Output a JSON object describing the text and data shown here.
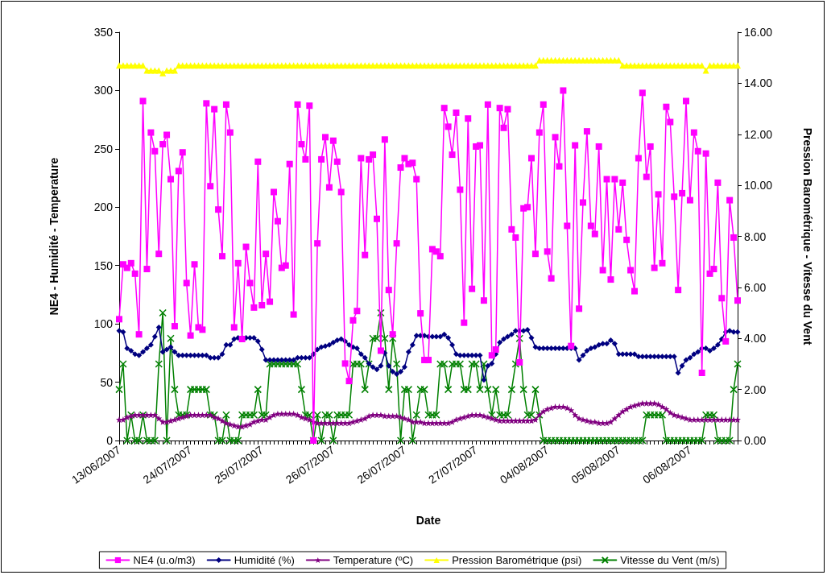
{
  "chart_data": {
    "type": "line",
    "xlabel": "Date",
    "ylabel": "NE4 - Humidité - Temperature",
    "y2label": "Pression Barométrique - Vitesse du Vent",
    "categories": [
      "13/06/2007",
      null,
      null,
      null,
      null,
      null,
      null,
      null,
      null,
      null,
      null,
      null,
      null,
      null,
      null,
      null,
      null,
      null,
      "24/07/2007",
      null,
      null,
      null,
      null,
      null,
      null,
      null,
      null,
      null,
      null,
      null,
      null,
      null,
      null,
      null,
      null,
      null,
      "25/07/2007",
      null,
      null,
      null,
      null,
      null,
      null,
      null,
      null,
      null,
      null,
      null,
      null,
      null,
      null,
      null,
      null,
      null,
      "26/07/2007",
      null,
      null,
      null,
      null,
      null,
      null,
      null,
      null,
      null,
      null,
      null,
      null,
      null,
      null,
      null,
      null,
      null,
      "26/07/2007",
      null,
      null,
      null,
      null,
      null,
      null,
      null,
      null,
      null,
      null,
      null,
      null,
      null,
      null,
      null,
      null,
      null,
      "27/07/2007",
      null,
      null,
      null,
      null,
      null,
      null,
      null,
      null,
      null,
      null,
      null,
      null,
      null,
      null,
      null,
      null,
      null,
      "04/08/2007",
      null,
      null,
      null,
      null,
      null,
      null,
      null,
      null,
      null,
      null,
      null,
      null,
      null,
      null,
      null,
      null,
      null,
      "05/08/2007",
      null,
      null,
      null,
      null,
      null,
      null,
      null,
      null,
      null,
      null,
      null,
      null,
      null,
      null,
      null,
      null,
      null,
      "06/08/2007",
      null,
      null,
      null,
      null,
      null,
      null,
      null,
      null,
      null,
      null,
      null,
      null
    ],
    "ylim": [
      0,
      350
    ],
    "yticks": [
      0,
      50,
      100,
      150,
      200,
      250,
      300,
      350
    ],
    "y2lim": [
      0,
      16
    ],
    "y2ticks": [
      {
        "value": 0,
        "label": "0.00"
      },
      {
        "value": 2,
        "label": "2.00"
      },
      {
        "value": 4,
        "label": "4.00"
      },
      {
        "value": 6,
        "label": "6.00"
      },
      {
        "value": 8,
        "label": "8.00"
      },
      {
        "value": 10,
        "label": "10.00"
      },
      {
        "value": 12,
        "label": "12.00"
      },
      {
        "value": 14,
        "label": "14.00"
      },
      {
        "value": 16,
        "label": "16.00"
      }
    ],
    "grid": false,
    "legend": "bottom",
    "series": [
      {
        "name": "NE4 (u.o/m3)",
        "color": "#ff00ff",
        "marker": "square",
        "values": [
          104,
          151,
          148,
          152,
          143,
          91,
          291,
          147,
          264,
          248,
          160,
          254,
          262,
          224,
          98,
          231,
          247,
          135,
          90,
          151,
          97,
          95,
          289,
          218,
          284,
          198,
          158,
          288,
          264,
          97,
          152,
          87,
          166,
          135,
          114,
          239,
          116,
          160,
          119,
          213,
          188,
          148,
          150,
          237,
          108,
          288,
          254,
          241,
          287,
          0,
          169,
          241,
          260,
          217,
          257,
          239,
          213,
          66,
          51,
          103,
          111,
          242,
          159,
          241,
          245,
          190,
          77,
          258,
          129,
          91,
          169,
          234,
          242,
          237,
          238,
          224,
          109,
          69,
          69,
          164,
          162,
          158,
          285,
          269,
          245,
          281,
          215,
          101,
          276,
          130,
          252,
          253,
          120,
          288,
          73,
          78,
          285,
          268,
          284,
          181,
          174,
          67,
          199,
          200,
          242,
          160,
          264,
          288,
          162,
          139,
          260,
          235,
          300,
          184,
          81,
          253,
          113,
          204,
          265,
          184,
          177,
          252,
          146,
          224,
          138,
          224,
          181,
          221,
          172,
          146,
          128,
          242,
          298,
          226,
          252,
          148,
          211,
          152,
          286,
          273,
          209,
          129,
          212,
          291,
          206,
          264,
          248,
          58,
          246,
          143,
          147,
          221,
          122,
          85,
          206,
          174,
          120
        ]
      },
      {
        "name": "Humidité (%)",
        "color": "#000080",
        "marker": "diamond",
        "values": [
          94,
          93,
          79,
          77,
          74,
          73,
          76,
          79,
          82,
          89,
          97,
          76,
          78,
          80,
          76,
          73,
          73,
          73,
          73,
          73,
          73,
          73,
          73,
          71,
          71,
          71,
          74,
          82,
          82,
          87,
          88,
          88,
          88,
          88,
          88,
          85,
          78,
          69,
          69,
          69,
          69,
          69,
          69,
          69,
          69,
          71,
          71,
          71,
          71,
          74,
          78,
          80,
          81,
          82,
          84,
          86,
          87,
          85,
          82,
          80,
          79,
          74,
          71,
          66,
          63,
          61,
          64,
          75,
          64,
          59,
          57,
          59,
          63,
          76,
          82,
          90,
          90,
          90,
          89,
          89,
          89,
          89,
          91,
          88,
          82,
          74,
          73,
          73,
          73,
          73,
          73,
          73,
          52,
          64,
          66,
          74,
          84,
          87,
          89,
          91,
          94,
          94,
          94,
          95,
          88,
          80,
          79,
          79,
          79,
          79,
          79,
          79,
          79,
          79,
          79,
          79,
          69,
          73,
          77,
          79,
          80,
          82,
          83,
          83,
          86,
          83,
          74,
          74,
          74,
          74,
          74,
          72,
          72,
          72,
          72,
          72,
          72,
          72,
          72,
          72,
          72,
          58,
          64,
          69,
          71,
          74,
          76,
          79,
          79,
          77,
          79,
          82,
          87,
          93,
          94,
          93,
          93
        ]
      },
      {
        "name": "Temperature (ºC)",
        "color": "#800080",
        "marker": "star",
        "values": [
          18,
          18,
          20,
          21,
          22,
          22,
          22,
          22,
          22,
          22,
          19,
          16,
          16,
          17,
          18,
          19,
          20,
          21,
          22,
          22,
          22,
          22,
          22,
          22,
          20,
          19,
          17,
          15,
          14,
          13,
          12,
          12,
          13,
          14,
          16,
          17,
          18,
          18,
          20,
          22,
          23,
          23,
          23,
          23,
          23,
          22,
          20,
          19,
          18,
          16,
          15,
          15,
          15,
          15,
          15,
          15,
          15,
          15,
          15,
          16,
          17,
          18,
          19,
          21,
          22,
          22,
          22,
          21,
          21,
          21,
          21,
          20,
          19,
          18,
          16,
          16,
          16,
          15,
          15,
          15,
          15,
          15,
          15,
          15,
          16,
          18,
          19,
          20,
          21,
          22,
          22,
          22,
          21,
          20,
          19,
          18,
          17,
          17,
          17,
          17,
          17,
          17,
          17,
          17,
          17,
          18,
          22,
          25,
          27,
          28,
          29,
          29,
          29,
          28,
          26,
          22,
          19,
          18,
          17,
          16,
          16,
          15,
          15,
          15,
          16,
          19,
          22,
          25,
          27,
          29,
          30,
          31,
          32,
          32,
          32,
          32,
          31,
          29,
          27,
          24,
          22,
          21,
          20,
          19,
          18,
          18,
          18,
          18,
          18,
          18,
          18,
          18,
          18,
          18,
          18,
          18,
          18
        ]
      },
      {
        "name": "Pression Barométrique (psi)",
        "color": "#ffff00",
        "marker": "triangle",
        "axis": "y2",
        "values": [
          14.7,
          14.7,
          14.7,
          14.7,
          14.7,
          14.7,
          14.7,
          14.5,
          14.5,
          14.5,
          14.5,
          14.4,
          14.5,
          14.5,
          14.5,
          14.7,
          14.7,
          14.7,
          14.7,
          14.7,
          14.7,
          14.7,
          14.7,
          14.7,
          14.7,
          14.7,
          14.7,
          14.7,
          14.7,
          14.7,
          14.7,
          14.7,
          14.7,
          14.7,
          14.7,
          14.7,
          14.7,
          14.7,
          14.7,
          14.7,
          14.7,
          14.7,
          14.7,
          14.7,
          14.7,
          14.7,
          14.7,
          14.7,
          14.7,
          14.7,
          14.7,
          14.7,
          14.7,
          14.7,
          14.7,
          14.7,
          14.7,
          14.7,
          14.7,
          14.7,
          14.7,
          14.7,
          14.7,
          14.7,
          14.7,
          14.7,
          14.7,
          14.7,
          14.7,
          14.7,
          14.7,
          14.7,
          14.7,
          14.7,
          14.7,
          14.7,
          14.7,
          14.7,
          14.7,
          14.7,
          14.7,
          14.7,
          14.7,
          14.7,
          14.7,
          14.7,
          14.7,
          14.7,
          14.7,
          14.7,
          14.7,
          14.7,
          14.7,
          14.7,
          14.7,
          14.7,
          14.7,
          14.7,
          14.7,
          14.7,
          14.7,
          14.7,
          14.7,
          14.7,
          14.7,
          14.7,
          14.9,
          14.9,
          14.9,
          14.9,
          14.9,
          14.9,
          14.9,
          14.9,
          14.9,
          14.9,
          14.9,
          14.9,
          14.9,
          14.9,
          14.9,
          14.9,
          14.9,
          14.9,
          14.9,
          14.9,
          14.9,
          14.7,
          14.7,
          14.7,
          14.7,
          14.7,
          14.7,
          14.7,
          14.7,
          14.7,
          14.7,
          14.7,
          14.7,
          14.7,
          14.7,
          14.7,
          14.7,
          14.7,
          14.7,
          14.7,
          14.7,
          14.7,
          14.5,
          14.7,
          14.7,
          14.7,
          14.7,
          14.7,
          14.7,
          14.7,
          14.7
        ]
      },
      {
        "name": "Vitesse du Vent (m/s)",
        "color": "#008000",
        "marker": "cross",
        "axis": "y2",
        "values": [
          2,
          3,
          0,
          1,
          0,
          0,
          1,
          0,
          0,
          0,
          3,
          5,
          0,
          4,
          2,
          1,
          1,
          1,
          2,
          2,
          2,
          2,
          2,
          1,
          1,
          0,
          0,
          1,
          0,
          0,
          0,
          1,
          1,
          1,
          1,
          2,
          1,
          1,
          3,
          3,
          3,
          3,
          3,
          3,
          3,
          3,
          2,
          1,
          1,
          0,
          1,
          0,
          1,
          1,
          0,
          1,
          1,
          1,
          1,
          3,
          3,
          3,
          2,
          3,
          4,
          4,
          5,
          4,
          2,
          4,
          3,
          0,
          2,
          2,
          0,
          1,
          2,
          2,
          1,
          1,
          1,
          3,
          3,
          2,
          3,
          3,
          3,
          2,
          2,
          3,
          3,
          2,
          3,
          2,
          1,
          2,
          1,
          1,
          1,
          2,
          3,
          4,
          2,
          1,
          1,
          2,
          1,
          0,
          0,
          0,
          0,
          0,
          0,
          0,
          0,
          0,
          0,
          0,
          0,
          0,
          0,
          0,
          0,
          0,
          0,
          0,
          0,
          0,
          0,
          0,
          0,
          0,
          0,
          1,
          1,
          1,
          1,
          1,
          0,
          0,
          0,
          0,
          0,
          0,
          0,
          0,
          0,
          0,
          1,
          1,
          1,
          0,
          0,
          0,
          0,
          2,
          3
        ]
      }
    ]
  }
}
